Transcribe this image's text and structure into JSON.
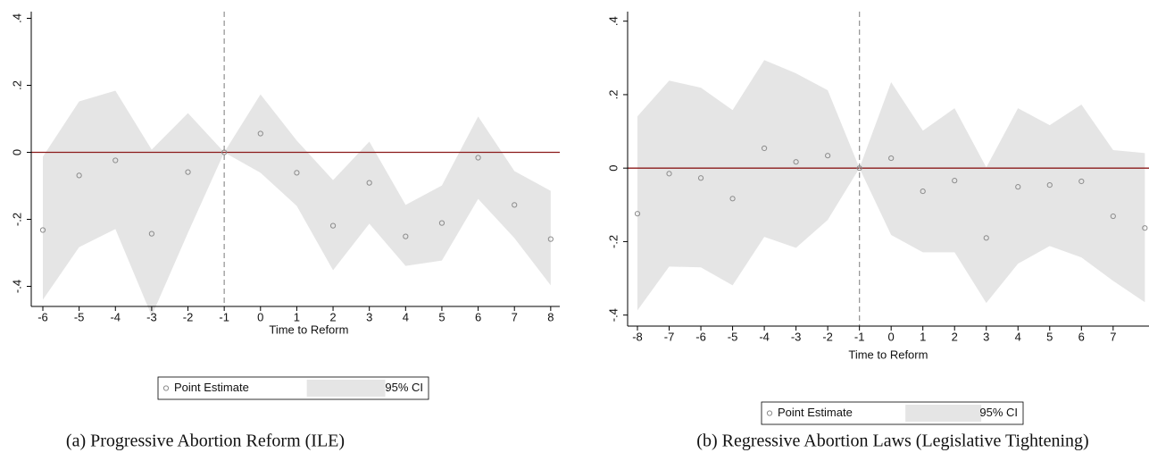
{
  "chart_data": [
    {
      "type": "scatter",
      "x": [
        -6,
        -5,
        -4,
        -3,
        -2,
        -1,
        0,
        1,
        2,
        3,
        4,
        5,
        6,
        7,
        8
      ],
      "series": [
        {
          "name": "Point Estimate",
          "color": "#8c8c8c",
          "values": [
            -0.232,
            -0.069,
            -0.024,
            -0.243,
            -0.059,
            0,
            0.056,
            -0.061,
            -0.219,
            -0.091,
            -0.251,
            -0.211,
            -0.016,
            -0.157,
            -0.259
          ]
        },
        {
          "name": "95% CI",
          "color": "#e5e5e5",
          "upper": [
            -0.013,
            0.152,
            0.184,
            0.008,
            0.117,
            0,
            0.173,
            0.035,
            -0.083,
            0.032,
            -0.157,
            -0.099,
            0.107,
            -0.056,
            -0.115
          ],
          "lower": [
            -0.44,
            -0.283,
            -0.229,
            -0.488,
            -0.24,
            0,
            -0.061,
            -0.16,
            -0.352,
            -0.213,
            -0.339,
            -0.323,
            -0.139,
            -0.256,
            -0.397
          ]
        }
      ],
      "xlabel": "Time to Reform",
      "caption": "(a) Progressive Abortion Reform (ILE)",
      "xlim": [
        -6.32,
        8.25
      ],
      "ylim": [
        -0.46,
        0.42
      ],
      "xticks": [
        -6,
        -5,
        -4,
        -3,
        -2,
        -1,
        0,
        1,
        2,
        3,
        4,
        5,
        6,
        7,
        8
      ],
      "yticks": [
        {
          "value": -0.4,
          "label": "-.4"
        },
        {
          "value": -0.2,
          "label": "-.2"
        },
        0,
        {
          "value": 0.2,
          "label": ".2"
        },
        {
          "value": 0.4,
          "label": ".4"
        }
      ],
      "hline": 0,
      "hline_color": "#8b1a1a",
      "vline": -1,
      "vline_color": "#999999"
    },
    {
      "type": "scatter",
      "x": [
        -8,
        -7,
        -6,
        -5,
        -4,
        -3,
        -2,
        -1,
        0,
        1,
        2,
        3,
        4,
        5,
        6,
        7,
        8
      ],
      "series": [
        {
          "name": "Point Estimate",
          "color": "#8c8c8c",
          "values": [
            -0.124,
            -0.015,
            -0.027,
            -0.083,
            0.054,
            0.017,
            0.034,
            0,
            0.027,
            -0.063,
            -0.034,
            -0.19,
            -0.051,
            -0.046,
            -0.036,
            -0.131,
            -0.163
          ]
        },
        {
          "name": "95% CI",
          "color": "#e5e5e5",
          "upper": [
            0.141,
            0.238,
            0.219,
            0.158,
            0.294,
            0.258,
            0.212,
            0,
            0.234,
            0.102,
            0.163,
            0.002,
            0.163,
            0.117,
            0.173,
            0.049,
            0.041
          ],
          "lower": [
            -0.387,
            -0.268,
            -0.27,
            -0.319,
            -0.187,
            -0.217,
            -0.141,
            0,
            -0.182,
            -0.229,
            -0.229,
            -0.367,
            -0.26,
            -0.212,
            -0.243,
            -0.307,
            -0.365
          ]
        }
      ],
      "xlabel": "Time to Reform",
      "caption": "(b) Regressive Abortion Laws (Legislative Tightening)",
      "xlim": [
        -8.31,
        8.3
      ],
      "ylim": [
        -0.43,
        0.426
      ],
      "xticks": [
        -8,
        -7,
        -6,
        -5,
        -4,
        -3,
        -2,
        -1,
        0,
        1,
        2,
        3,
        4,
        5,
        6,
        7
      ],
      "yticks": [
        {
          "value": -0.4,
          "label": "-.4"
        },
        {
          "value": -0.2,
          "label": "-.2"
        },
        0,
        {
          "value": 0.2,
          "label": ".2"
        },
        {
          "value": 0.4,
          "label": ".4"
        }
      ],
      "hline": 0,
      "hline_color": "#8b1a1a",
      "vline": -1,
      "vline_color": "#999999"
    }
  ]
}
